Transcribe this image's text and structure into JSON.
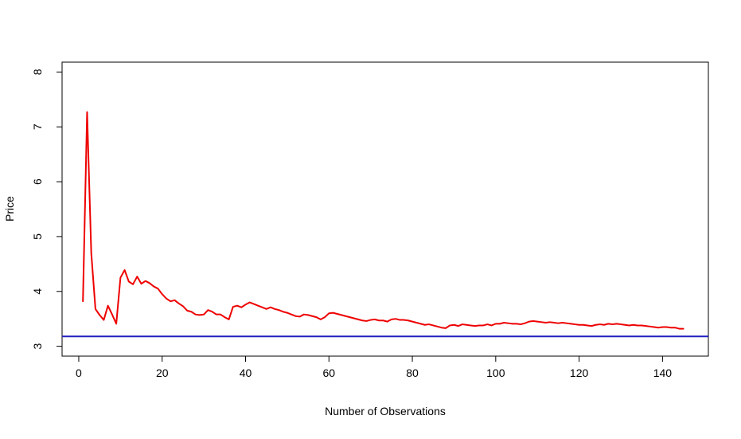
{
  "chart_data": {
    "type": "line",
    "title": "",
    "xlabel": "Number of Observations",
    "ylabel": "Price",
    "xlim": [
      -4,
      151
    ],
    "ylim": [
      2.82,
      8.18
    ],
    "x_ticks": [
      0,
      20,
      40,
      60,
      80,
      100,
      120,
      140
    ],
    "y_ticks": [
      3,
      4,
      5,
      6,
      7,
      8
    ],
    "x_tick_labels": [
      "0",
      "20",
      "40",
      "60",
      "80",
      "100",
      "120",
      "140"
    ],
    "y_tick_labels": [
      "3",
      "4",
      "5",
      "6",
      "7",
      "8"
    ],
    "grid": false,
    "legend": "none",
    "reference_line": {
      "y": 3.18,
      "color": "#1f1fbf"
    },
    "series": [
      {
        "color": "#ee0000",
        "x": [
          1,
          2,
          3,
          4,
          5,
          6,
          7,
          8,
          9,
          10,
          11,
          12,
          13,
          14,
          15,
          16,
          17,
          18,
          19,
          20,
          21,
          22,
          23,
          24,
          25,
          26,
          27,
          28,
          29,
          30,
          31,
          32,
          33,
          34,
          35,
          36,
          37,
          38,
          39,
          40,
          41,
          42,
          43,
          44,
          45,
          46,
          47,
          48,
          49,
          50,
          51,
          52,
          53,
          54,
          55,
          56,
          57,
          58,
          59,
          60,
          61,
          62,
          63,
          64,
          65,
          66,
          67,
          68,
          69,
          70,
          71,
          72,
          73,
          74,
          75,
          76,
          77,
          78,
          79,
          80,
          81,
          82,
          83,
          84,
          85,
          86,
          87,
          88,
          89,
          90,
          91,
          92,
          93,
          94,
          95,
          96,
          97,
          98,
          99,
          100,
          101,
          102,
          103,
          104,
          105,
          106,
          107,
          108,
          109,
          110,
          111,
          112,
          113,
          114,
          115,
          116,
          117,
          118,
          119,
          120,
          121,
          122,
          123,
          124,
          125,
          126,
          127,
          128,
          129,
          130,
          131,
          132,
          133,
          134,
          135,
          136,
          137,
          138,
          139,
          140,
          141,
          142,
          143,
          144,
          145
        ],
        "y": [
          3.82,
          7.27,
          4.7,
          3.68,
          3.57,
          3.48,
          3.74,
          3.58,
          3.41,
          4.25,
          4.39,
          4.18,
          4.13,
          4.27,
          4.14,
          4.19,
          4.15,
          4.09,
          4.05,
          3.95,
          3.87,
          3.82,
          3.84,
          3.78,
          3.73,
          3.65,
          3.63,
          3.58,
          3.57,
          3.58,
          3.66,
          3.63,
          3.58,
          3.58,
          3.53,
          3.49,
          3.72,
          3.74,
          3.71,
          3.76,
          3.8,
          3.77,
          3.74,
          3.71,
          3.68,
          3.71,
          3.68,
          3.66,
          3.63,
          3.61,
          3.58,
          3.55,
          3.54,
          3.58,
          3.57,
          3.55,
          3.53,
          3.49,
          3.53,
          3.6,
          3.61,
          3.59,
          3.57,
          3.55,
          3.53,
          3.51,
          3.49,
          3.47,
          3.46,
          3.48,
          3.49,
          3.47,
          3.47,
          3.45,
          3.49,
          3.5,
          3.48,
          3.48,
          3.47,
          3.45,
          3.43,
          3.41,
          3.39,
          3.4,
          3.38,
          3.36,
          3.34,
          3.33,
          3.38,
          3.39,
          3.37,
          3.4,
          3.39,
          3.38,
          3.37,
          3.38,
          3.38,
          3.4,
          3.38,
          3.41,
          3.41,
          3.43,
          3.42,
          3.41,
          3.41,
          3.4,
          3.42,
          3.45,
          3.46,
          3.45,
          3.44,
          3.43,
          3.44,
          3.43,
          3.42,
          3.43,
          3.42,
          3.41,
          3.4,
          3.39,
          3.39,
          3.38,
          3.37,
          3.39,
          3.4,
          3.39,
          3.41,
          3.4,
          3.41,
          3.4,
          3.39,
          3.38,
          3.39,
          3.38,
          3.38,
          3.37,
          3.36,
          3.35,
          3.34,
          3.35,
          3.35,
          3.34,
          3.34,
          3.32,
          3.32
        ]
      }
    ]
  }
}
